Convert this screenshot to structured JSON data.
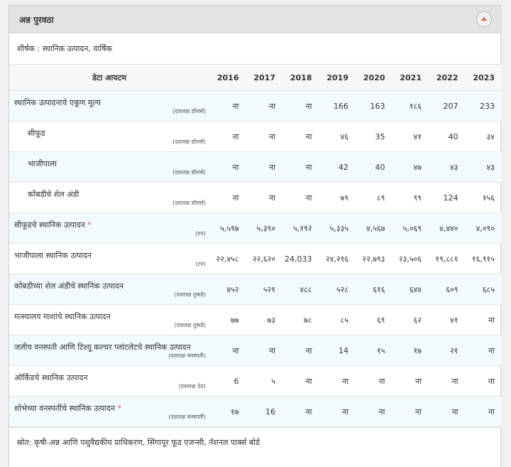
{
  "panel": {
    "title": "अन्न पुरवठा"
  },
  "subtitle": "शीर्षक : स्थानिक उत्पादन, वार्षिक",
  "table": {
    "item_header": "डेटा आयटम",
    "years": [
      "2016",
      "2017",
      "2018",
      "2019",
      "2020",
      "2021",
      "2022",
      "2023"
    ],
    "rows": [
      {
        "label": "स्थानिक उत्पादनाचे एकूण मूल्य",
        "unit": "(दशलक्ष डॉलर्स)",
        "indent": false,
        "star": false,
        "values": [
          "ना",
          "ना",
          "ना",
          "166",
          "163",
          "१८६",
          "207",
          "233"
        ]
      },
      {
        "label": "सीफूड",
        "unit": "(दशलक्ष डॉलर्स)",
        "indent": true,
        "star": false,
        "values": [
          "ना",
          "ना",
          "ना",
          "४६",
          "35",
          "४१",
          "40",
          "३४"
        ]
      },
      {
        "label": "भाजीपाला",
        "unit": "(दशलक्ष डॉलर्स)",
        "indent": true,
        "star": false,
        "values": [
          "ना",
          "ना",
          "ना",
          "42",
          "40",
          "४७",
          "४३",
          "४३"
        ]
      },
      {
        "label": "कोंबडीचे शेल अंडी",
        "unit": "(दशलक्ष डॉलर्स)",
        "indent": true,
        "star": false,
        "values": [
          "ना",
          "ना",
          "ना",
          "७९",
          "८९",
          "९९",
          "124",
          "१५६"
        ]
      },
      {
        "label": "सीफूडचे स्थानिक उत्पादन",
        "unit": "(टन)",
        "indent": false,
        "star": true,
        "values": [
          "५,५९७",
          "५,३९०",
          "५,१९२",
          "५,३३५",
          "४,५६७",
          "५,०६९",
          "४,४४०",
          "४,०९०"
        ]
      },
      {
        "label": "भाजीपाला स्थानिक उत्पादन",
        "unit": "(टन)",
        "indent": false,
        "star": false,
        "values": [
          "२२,४५८",
          "२२,६२०",
          "24,033",
          "२४,२९६",
          "२२,७९३",
          "२३,५०६",
          "१९,८८१",
          "१६,९१५"
        ]
      },
      {
        "label": "कोंबडीच्या शेल अंडीचे स्थानिक उत्पादन",
        "unit": "(दशलक्ष तुकडे)",
        "indent": false,
        "star": false,
        "values": [
          "४५२",
          "५२१",
          "४८८",
          "५२८",
          "६१६",
          "६४४",
          "६०९",
          "६८५"
        ]
      },
      {
        "label": "मत्स्यालय माशांचे स्थानिक उत्पादन",
        "unit": "(दशलक्ष तुकडे)",
        "indent": false,
        "star": false,
        "values": [
          "७७",
          "७३",
          "७८",
          "८५",
          "६९",
          "६२",
          "४१",
          "ना"
        ]
      },
      {
        "label": "जलीय वनस्पती आणि टिश्यू कल्चर प्लांटलेटचे स्थानिक उत्पादन",
        "unit": "(दशलक्ष वनस्पती)",
        "indent": false,
        "star": false,
        "values": [
          "ना",
          "ना",
          "ना",
          "14",
          "१५",
          "१७",
          "२१",
          "ना"
        ]
      },
      {
        "label": "ऑर्किडचे स्थानिक उत्पादन",
        "unit": "(दशलक्ष देठ)",
        "indent": false,
        "star": false,
        "values": [
          "6",
          "५",
          "ना",
          "ना",
          "ना",
          "ना",
          "ना",
          "ना"
        ]
      },
      {
        "label": "शोभेच्या वनस्पतींचे स्थानिक उत्पादन",
        "unit": "(दशलक्ष वनस्पती)",
        "indent": false,
        "star": true,
        "values": [
          "१७",
          "16",
          "ना",
          "ना",
          "ना",
          "ना",
          "ना",
          "ना"
        ]
      }
    ]
  },
  "footer": "स्रोत: कृषी-अन्न आणि पशुवैद्यकीय प्राधिकरण, सिंगापूर फूड एजन्सी, नॅशनल पार्क्स बोर्ड"
}
